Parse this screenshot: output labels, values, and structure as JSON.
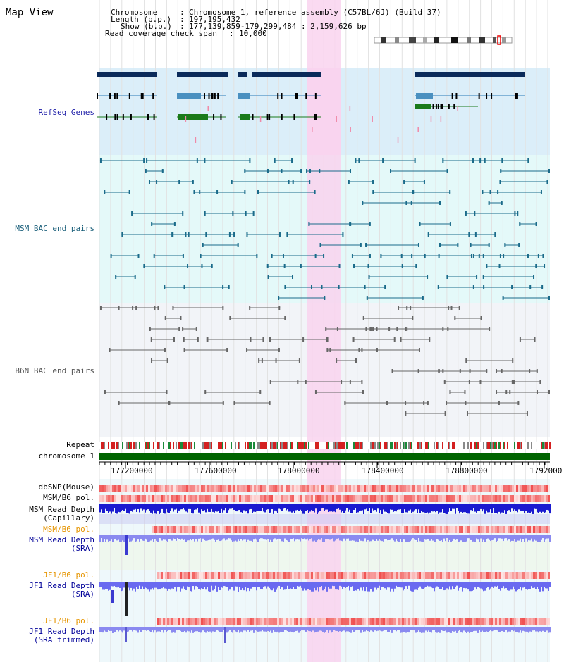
{
  "header": {
    "title": "Map View",
    "chromosome_label": "Chromosome",
    "chromosome_value": "Chromosome 1, reference assembly (C57BL/6J) (Build 37)",
    "length_label": "Length (b.p.)",
    "length_value": "197,195,432",
    "show_label": "Show (b.p.)",
    "show_value": "177,139,859-179,299,484 : 2,159,626 bp",
    "coverage_label": "Read coverage check span",
    "coverage_value": "10,000"
  },
  "tracks": {
    "refseq": "RefSeq Genes",
    "msm_bac": "MSM BAC end pairs",
    "b6n_bac": "B6N BAC end pairs",
    "repeat": "Repeat",
    "chromosome": "chromosome 1",
    "dbsnp": "dbSNP(Mouse)",
    "msm_b6_pol_1": "MSM/B6 pol.",
    "msm_read_depth_cap_1": "MSM Read Depth",
    "msm_read_depth_cap_2": "(Capillary)",
    "msm_b6_pol_2": "MSM/B6 pol.",
    "msm_read_depth_sra_1": "MSM Read Depth",
    "msm_read_depth_sra_2": "(SRA)",
    "jf1_b6_pol_1": "JF1/B6 pol.",
    "jf1_read_depth_sra_1": "JF1 Read Depth",
    "jf1_read_depth_sra_2": "(SRA)",
    "jf1_b6_pol_2": "JF1/B6 pol.",
    "jf1_read_depth_trim_1": "JF1 Read Depth",
    "jf1_read_depth_trim_2": "(SRA trimmed)"
  },
  "axis": {
    "ticks": [
      "177200000",
      "177600000",
      "178000000",
      "178400000",
      "178800000",
      "1792000"
    ]
  },
  "colors": {
    "refseq_label": "#1a1aa6",
    "msm_label": "#1a5f7a",
    "b6n_label": "#555555",
    "pol_label": "#e69500",
    "depth_label": "#000099",
    "highlight": "#f9d4ef",
    "refseq_bg": "#dbeef9",
    "msm_bg": "#e4f9f9",
    "b6n_bg": "#f2f4f8",
    "chromosome_bar": "#006400"
  }
}
